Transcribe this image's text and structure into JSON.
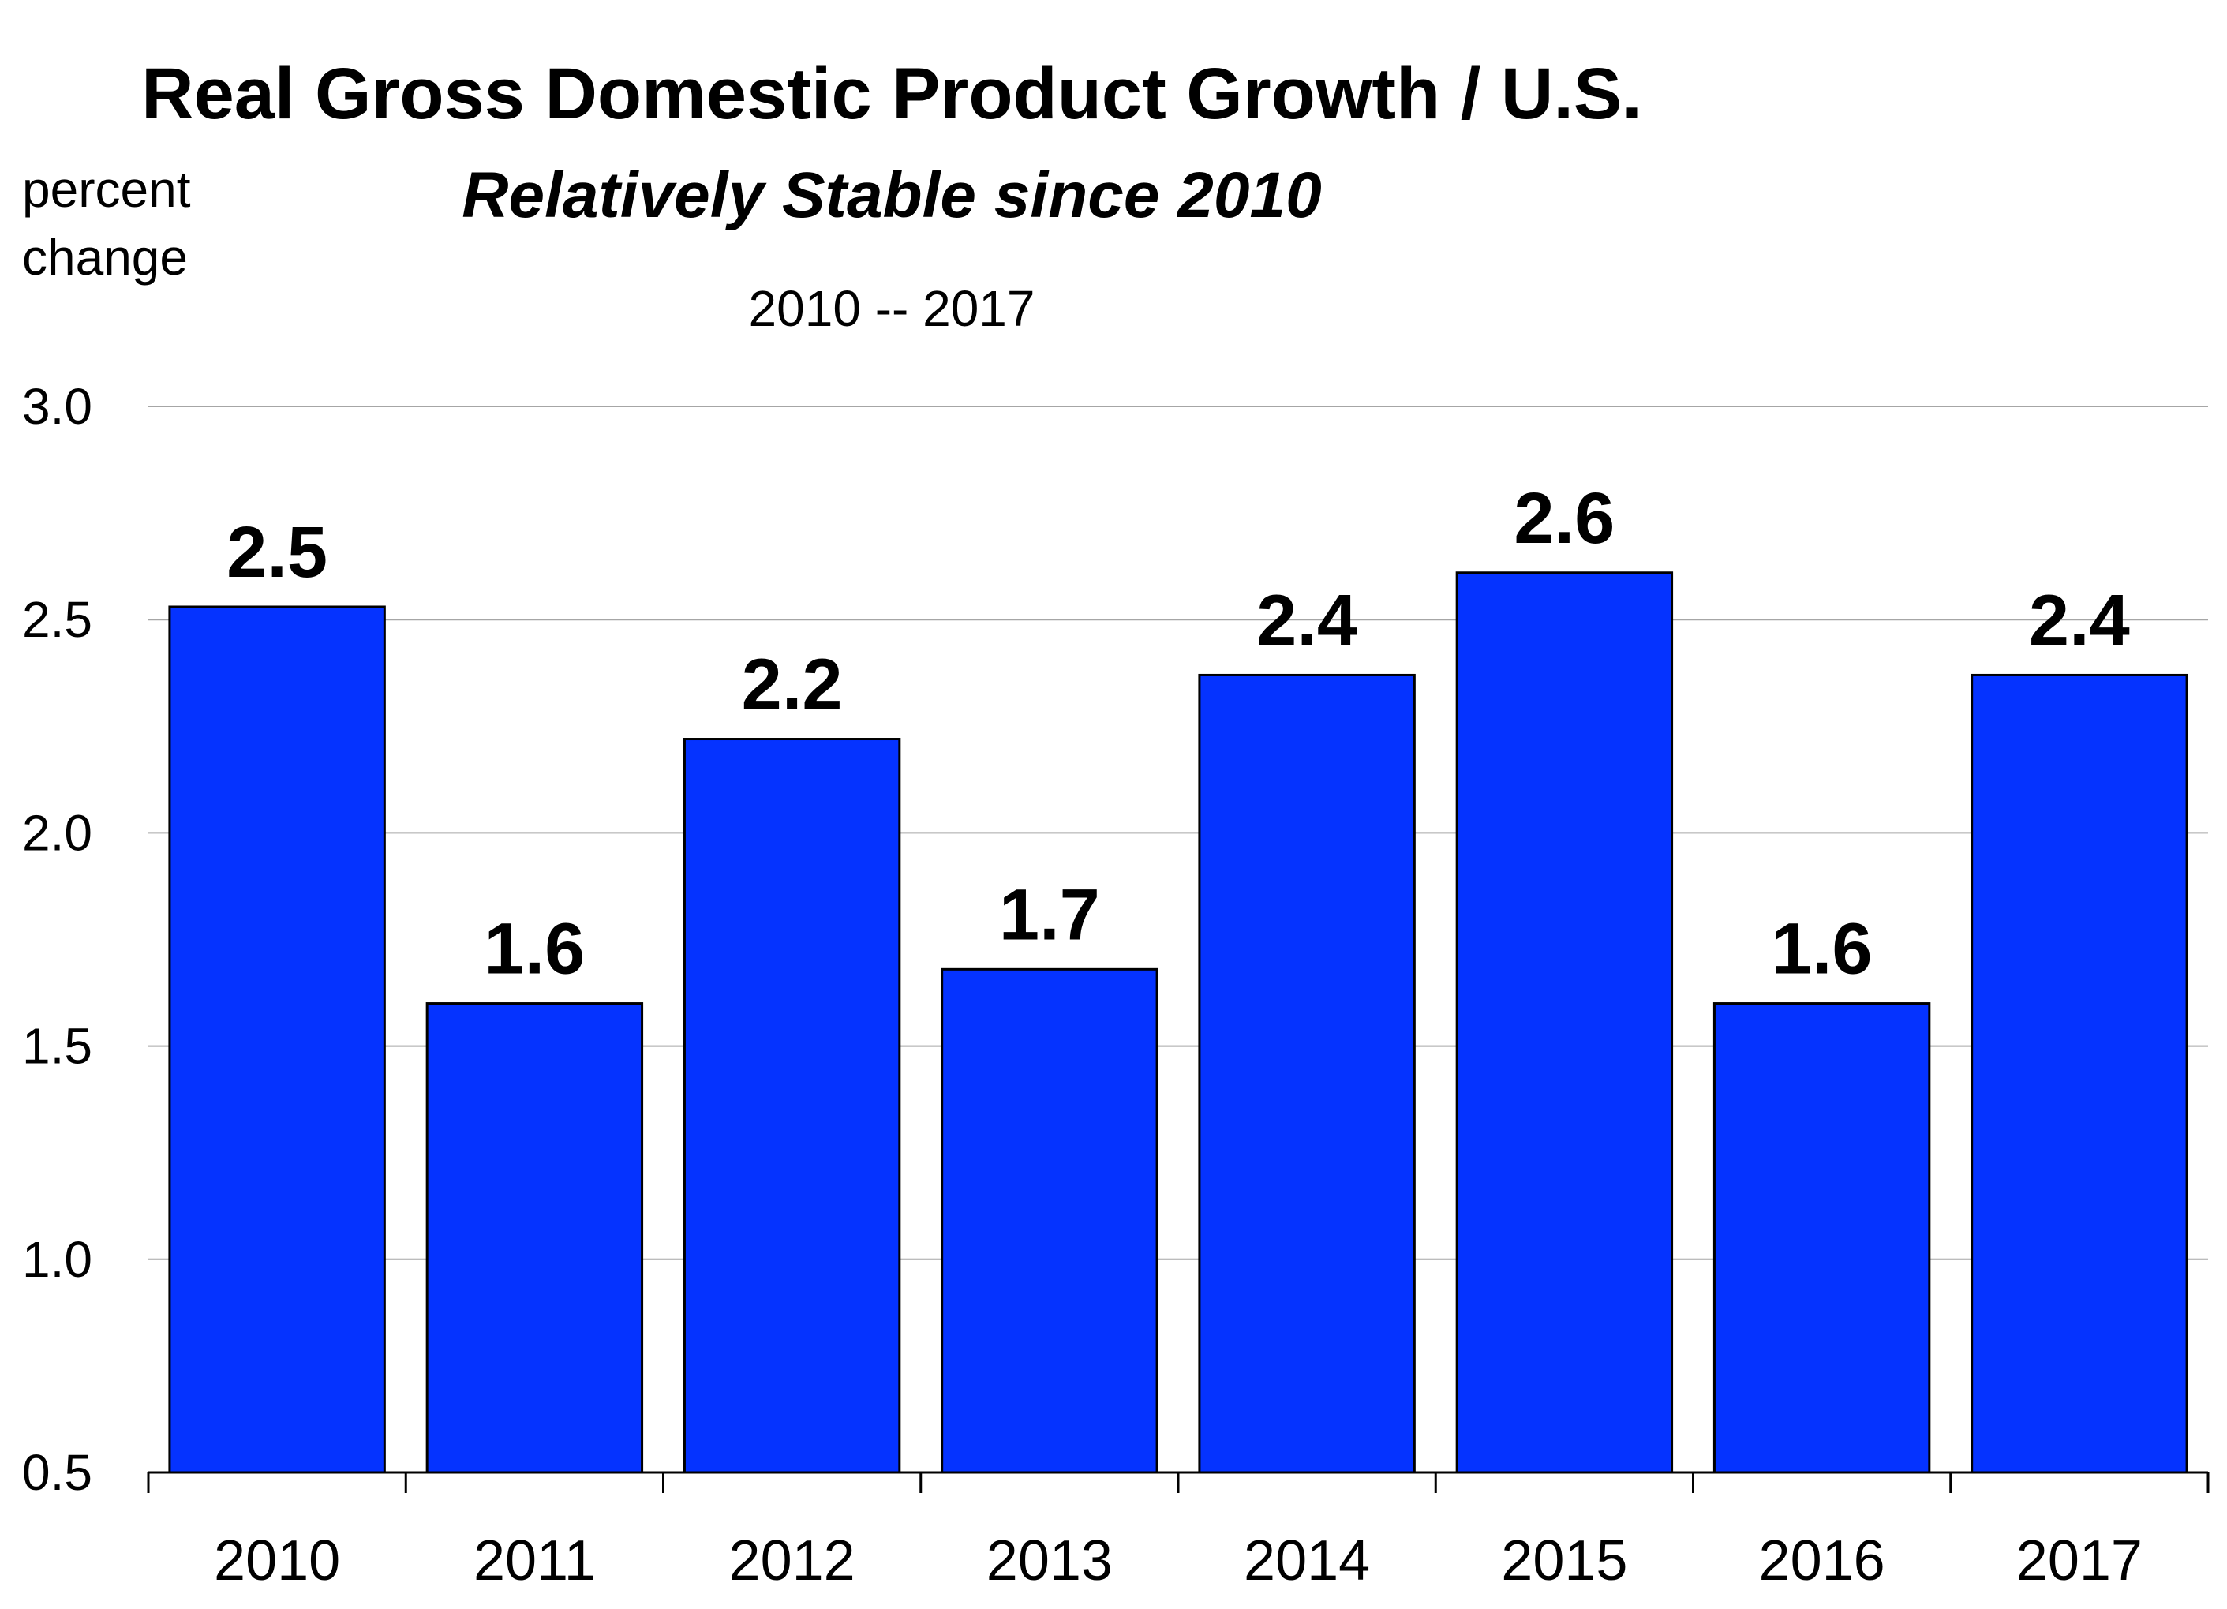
{
  "chart_data": {
    "type": "bar",
    "title": "Real Gross Domestic Product Growth / U.S.",
    "subtitle": "Relatively Stable since 2010",
    "range_note": "2010 -- 2017",
    "ylabel_lines": [
      "percent",
      "change"
    ],
    "xlabel": "",
    "categories": [
      "2010",
      "2011",
      "2012",
      "2013",
      "2014",
      "2015",
      "2016",
      "2017"
    ],
    "values": [
      2.53,
      1.6,
      2.22,
      1.68,
      2.37,
      2.61,
      1.6,
      2.37
    ],
    "data_labels": [
      "2.5",
      "1.6",
      "2.2",
      "1.7",
      "2.4",
      "2.6",
      "1.6",
      "2.4"
    ],
    "ylim": [
      0.5,
      3.0
    ],
    "yticks": [
      0.5,
      1.0,
      1.5,
      2.0,
      2.5,
      3.0
    ],
    "ytick_labels": [
      "0.5",
      "1.0",
      "1.5",
      "2.0",
      "2.5",
      "3.0"
    ],
    "grid": true,
    "legend": "none",
    "bar_color": "#0533ff",
    "bar_outline_color": "#000000",
    "grid_color": "#a6a6a6"
  }
}
